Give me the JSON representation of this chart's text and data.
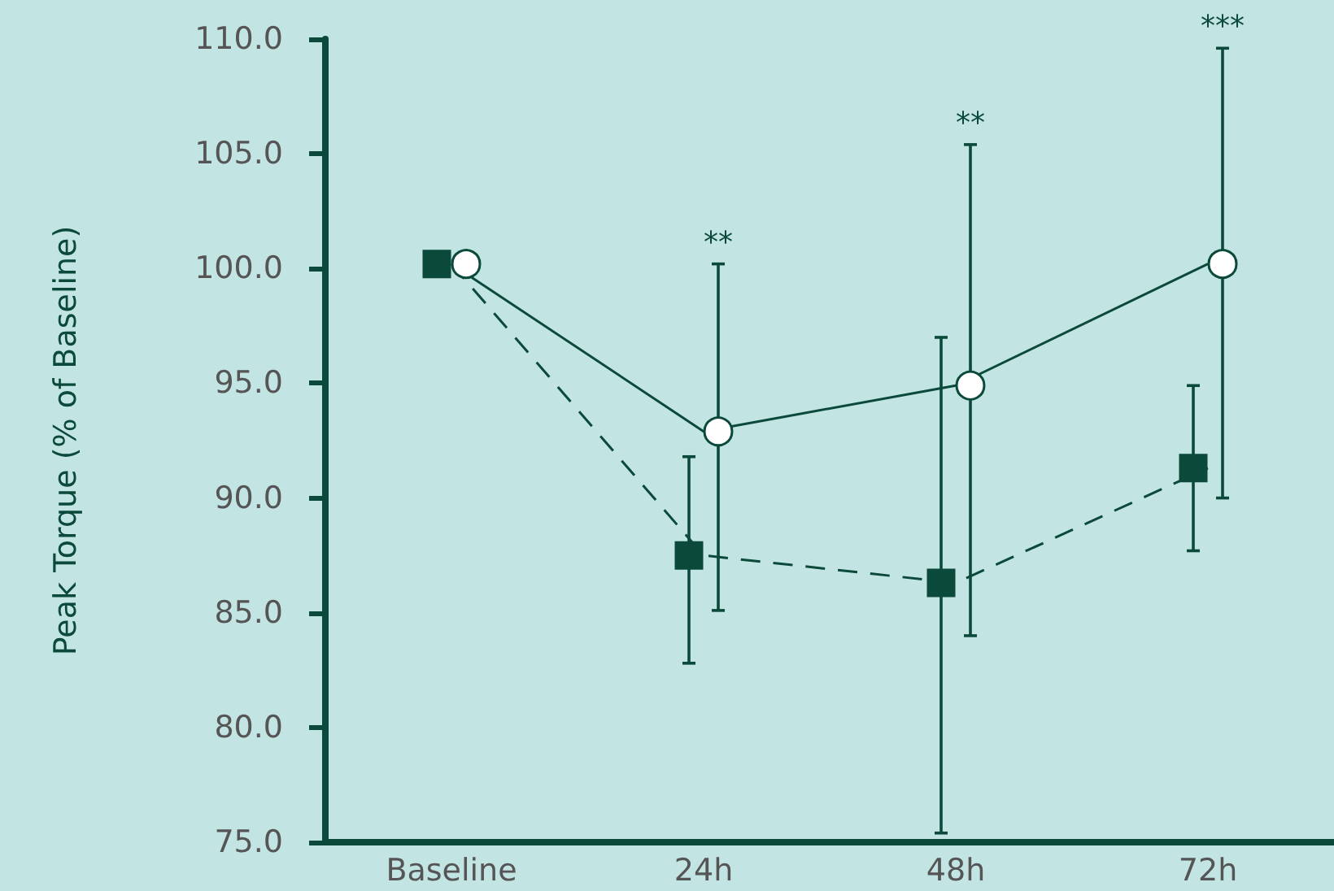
{
  "chart_data": {
    "type": "line",
    "ylabel": "Peak Torque (% of Baseline)",
    "categories": [
      "Baseline",
      "24h",
      "48h",
      "72h"
    ],
    "series": [
      {
        "color": "#0b4a3a",
        "marker": "square",
        "line_style": "dashed",
        "values": [
          100.2,
          87.5,
          86.3,
          91.3
        ],
        "errors": [
          null,
          [
            82.8,
            91.8
          ],
          [
            75.4,
            97.0
          ],
          [
            87.7,
            94.9
          ]
        ]
      },
      {
        "color": "#0b4a3a",
        "marker": "circle",
        "line_style": "solid",
        "values": [
          100.2,
          92.9,
          94.9,
          100.2
        ],
        "errors": [
          null,
          [
            85.1,
            100.2
          ],
          [
            84.0,
            105.4
          ],
          [
            90.0,
            109.6
          ]
        ]
      }
    ],
    "ylim": [
      75,
      110
    ],
    "yticks": [
      {
        "value": 75,
        "label": "75.0"
      },
      {
        "value": 80,
        "label": "80.0"
      },
      {
        "value": 85,
        "label": "85.0"
      },
      {
        "value": 90,
        "label": "90.0"
      },
      {
        "value": 95,
        "label": "95.0"
      },
      {
        "value": 100,
        "label": "100.0"
      },
      {
        "value": 105,
        "label": "105.0"
      },
      {
        "value": 110,
        "label": "110.0"
      }
    ],
    "grid": false,
    "annotations": [
      "**",
      "**",
      "***"
    ]
  }
}
